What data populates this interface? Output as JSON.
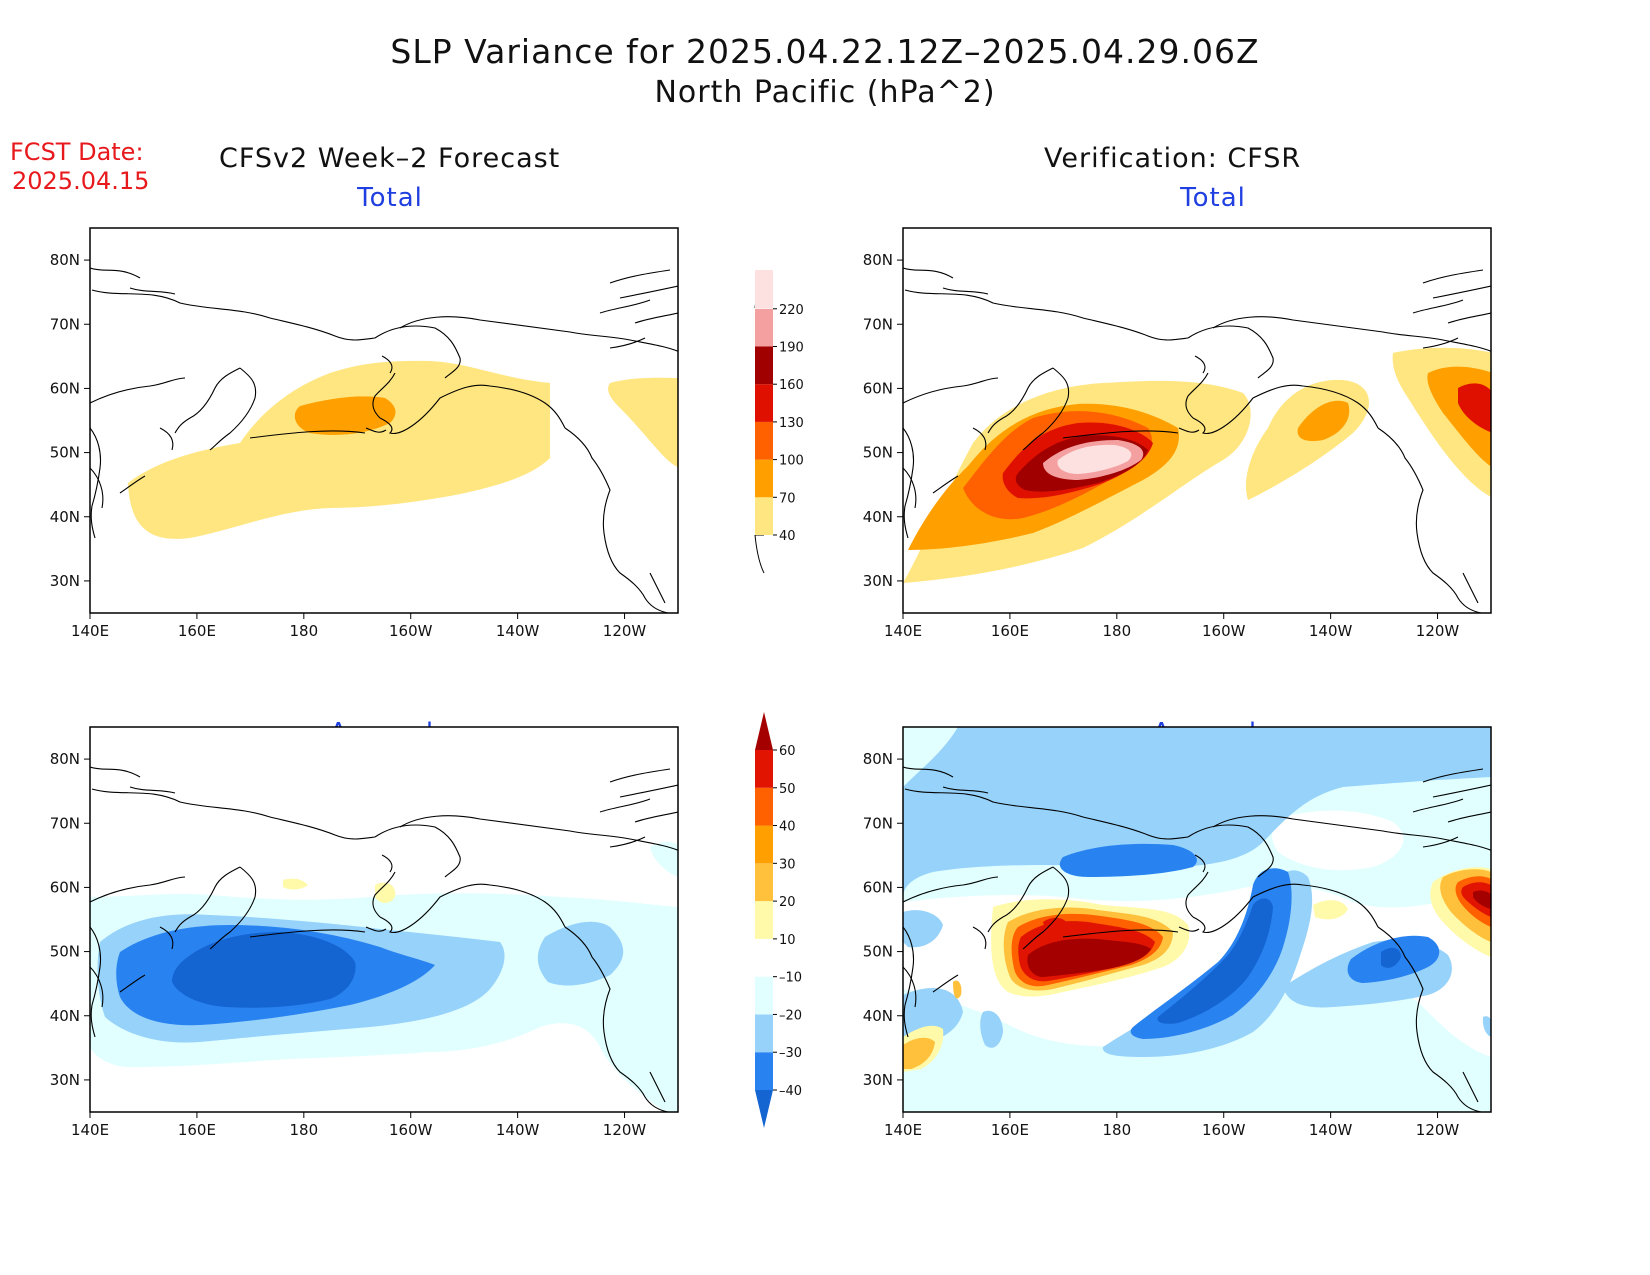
{
  "header": {
    "title": "SLP Variance for 2025.04.22.12Z–2025.04.29.06Z",
    "subtitle": "North Pacific (hPa^2)",
    "fcst_label": "FCST Date:",
    "fcst_value": "2025.04.15"
  },
  "columns": {
    "left": "CFSv2 Week–2 Forecast",
    "right": "Verification: CFSR"
  },
  "panels": {
    "fc_total": "Total",
    "ver_total": "Total",
    "fc_anom": "Anomaly",
    "ver_anom": "Anomaly"
  },
  "map_axes": {
    "lon_ticks": [
      "140E",
      "160E",
      "180",
      "160W",
      "140W",
      "120W"
    ],
    "lat_ticks": [
      "80N",
      "70N",
      "60N",
      "50N",
      "40N",
      "30N"
    ],
    "lon_range_deg_east": [
      140,
      250
    ],
    "lat_range_deg": [
      25,
      85
    ]
  },
  "colorbars": {
    "total": {
      "levels": [
        "40",
        "70",
        "100",
        "130",
        "160",
        "190",
        "220"
      ],
      "colors": [
        "#ffe680",
        "#ffa000",
        "#ff6000",
        "#e01000",
        "#a00000",
        "#f5a0a0",
        "#fde0e0"
      ]
    },
    "anomaly": {
      "levels": [
        "–40",
        "–30",
        "–20",
        "–10",
        "10",
        "20",
        "30",
        "40",
        "50",
        "60"
      ],
      "colors": [
        "#1464d2",
        "#2882f0",
        "#96d2fa",
        "#e1ffff",
        "#ffffff",
        "#fffaaa",
        "#ffc03c",
        "#ffa000",
        "#ff6000",
        "#e01400",
        "#a50000"
      ]
    }
  }
}
